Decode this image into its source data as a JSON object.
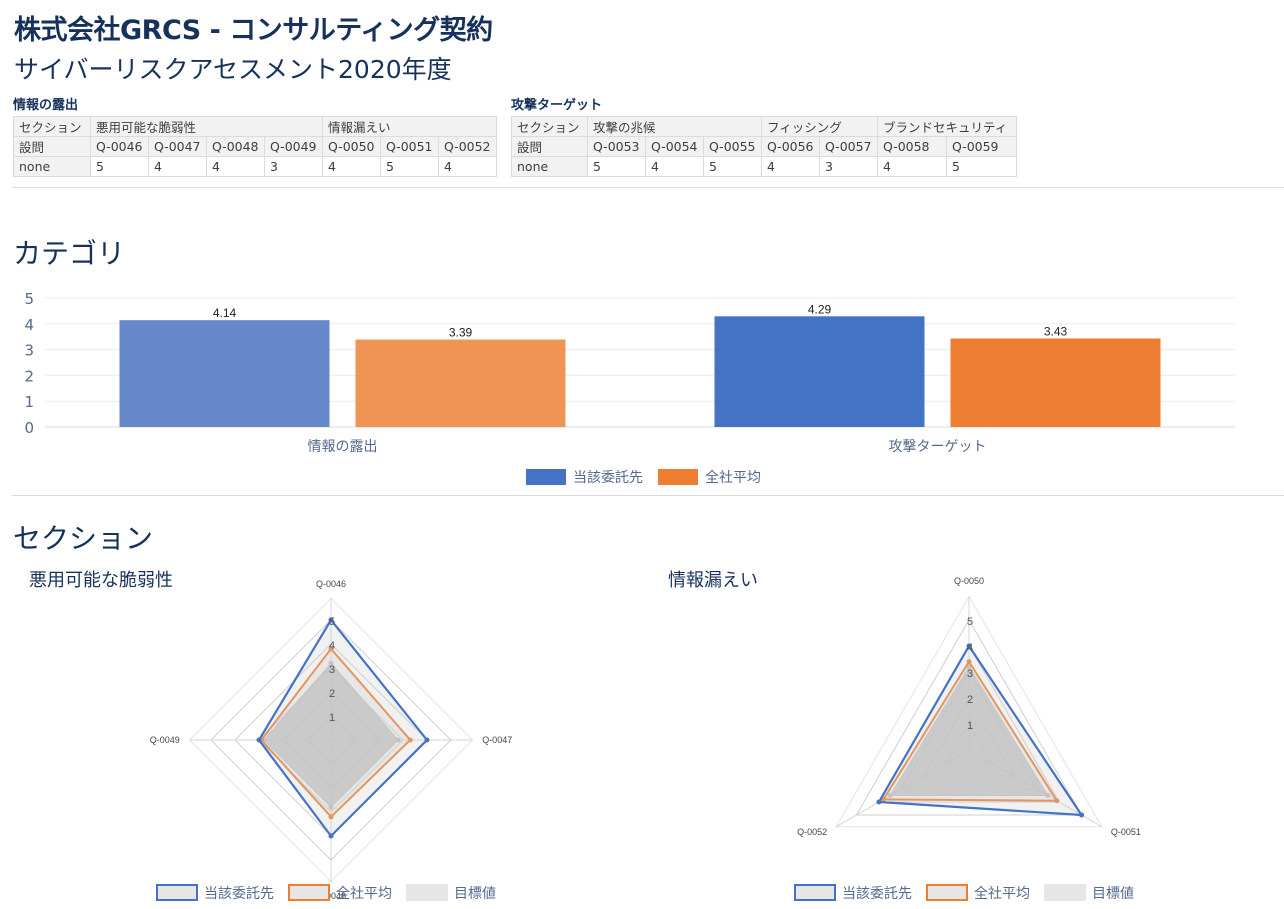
{
  "header": {
    "title": "株式会社GRCS - コンサルティング契約",
    "subtitle": "サイバーリスクアセスメント2020年度"
  },
  "tables": [
    {
      "title": "情報の露出",
      "row_labels": {
        "section": "セクション",
        "question": "設問",
        "value": "none"
      },
      "sections": [
        {
          "label": "悪用可能な脆弱性",
          "span": 4
        },
        {
          "label": "情報漏えい",
          "span": 3
        }
      ],
      "questions": [
        "Q-0046",
        "Q-0047",
        "Q-0048",
        "Q-0049",
        "Q-0050",
        "Q-0051",
        "Q-0052"
      ],
      "values": [
        "5",
        "4",
        "4",
        "3",
        "4",
        "5",
        "4"
      ]
    },
    {
      "title": "攻撃ターゲット",
      "row_labels": {
        "section": "セクション",
        "question": "設問",
        "value": "none"
      },
      "sections": [
        {
          "label": "攻撃の兆候",
          "span": 3
        },
        {
          "label": "フィッシング",
          "span": 2
        },
        {
          "label": "ブランドセキュリティ",
          "span": 2
        }
      ],
      "questions": [
        "Q-0053",
        "Q-0054",
        "Q-0055",
        "Q-0056",
        "Q-0057",
        "Q-0058",
        "Q-0059"
      ],
      "values": [
        "5",
        "4",
        "5",
        "4",
        "3",
        "4",
        "5"
      ]
    }
  ],
  "category": {
    "heading": "カテゴリ"
  },
  "section": {
    "heading": "セクション"
  },
  "chart_data": [
    {
      "type": "bar",
      "title": "",
      "categories": [
        "情報の露出",
        "攻撃ターゲット"
      ],
      "series": [
        {
          "name": "当該委託先",
          "values": [
            4.14,
            4.29
          ],
          "colors": [
            "#6689cc",
            "#4472c4"
          ]
        },
        {
          "name": "全社平均",
          "values": [
            3.39,
            3.43
          ],
          "colors": [
            "#f09456",
            "#ed7d31"
          ]
        }
      ],
      "ylim": [
        0,
        5
      ],
      "yticks": [
        0,
        1,
        2,
        3,
        4,
        5
      ],
      "grid": true,
      "legend": "bottom"
    },
    {
      "type": "radar",
      "title": "悪用可能な脆弱性",
      "axes": [
        "Q-0046",
        "Q-0047",
        "Q-0048",
        "Q-0049"
      ],
      "rlim": [
        0,
        5
      ],
      "rticks": [
        1,
        2,
        3,
        4,
        5
      ],
      "series": [
        {
          "name": "当該委託先",
          "values": [
            5,
            4,
            4,
            3
          ],
          "color": "#4472c4"
        },
        {
          "name": "全社平均",
          "values": [
            3.8,
            3.3,
            3.2,
            2.9
          ],
          "color": "#ed7d31"
        },
        {
          "name": "目標値",
          "values": [
            3.2,
            2.8,
            2.8,
            2.8
          ],
          "color": "#c8c8c8"
        }
      ],
      "legend": "bottom"
    },
    {
      "type": "radar",
      "title": "情報漏えい",
      "axes": [
        "Q-0050",
        "Q-0051",
        "Q-0052"
      ],
      "rlim": [
        0,
        5
      ],
      "rticks": [
        1,
        2,
        3,
        4,
        5
      ],
      "series": [
        {
          "name": "当該委託先",
          "values": [
            4,
            5,
            4
          ],
          "color": "#4472c4"
        },
        {
          "name": "全社平均",
          "values": [
            3.4,
            3.9,
            3.8
          ],
          "color": "#ed7d31"
        },
        {
          "name": "目標値",
          "values": [
            3.2,
            3.5,
            3.5
          ],
          "color": "#c8c8c8"
        }
      ],
      "legend": "bottom"
    }
  ]
}
